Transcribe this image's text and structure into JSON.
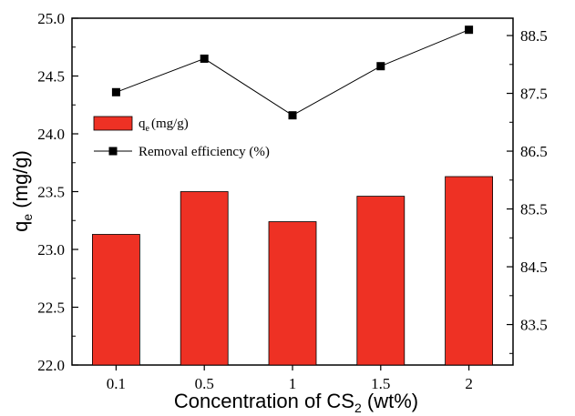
{
  "chart_data": {
    "type": "bar+line",
    "categories": [
      "0.1",
      "0.5",
      "1",
      "1.5",
      "2"
    ],
    "xlabel": "Concentration of CS",
    "xlabel_sub": "2",
    "xlabel_unit": " (wt%)",
    "ylabel": "q",
    "ylabel_sub": "e",
    "ylabel_unit": " (mg/g)",
    "ylim": [
      22.0,
      25.0
    ],
    "yticks": [
      "22.0",
      "22.5",
      "23.0",
      "23.5",
      "24.0",
      "24.5",
      "25.0"
    ],
    "y2lim": [
      82.8,
      88.8
    ],
    "y2ticks": [
      "83.5",
      "84.5",
      "85.5",
      "86.5",
      "87.5",
      "88.5"
    ],
    "grid": false,
    "legend_position": "upper-left",
    "series": [
      {
        "name_main": "q",
        "name_sub": "e",
        "name_unit": "(mg/g)",
        "kind": "bar",
        "axis": "left",
        "color": "#ee3124",
        "values": [
          23.13,
          23.5,
          23.24,
          23.46,
          23.63
        ]
      },
      {
        "name": "Removal efficiency (%)",
        "kind": "line",
        "axis": "right",
        "color": "#000000",
        "values": [
          87.52,
          88.1,
          87.12,
          87.97,
          88.6
        ]
      }
    ]
  }
}
